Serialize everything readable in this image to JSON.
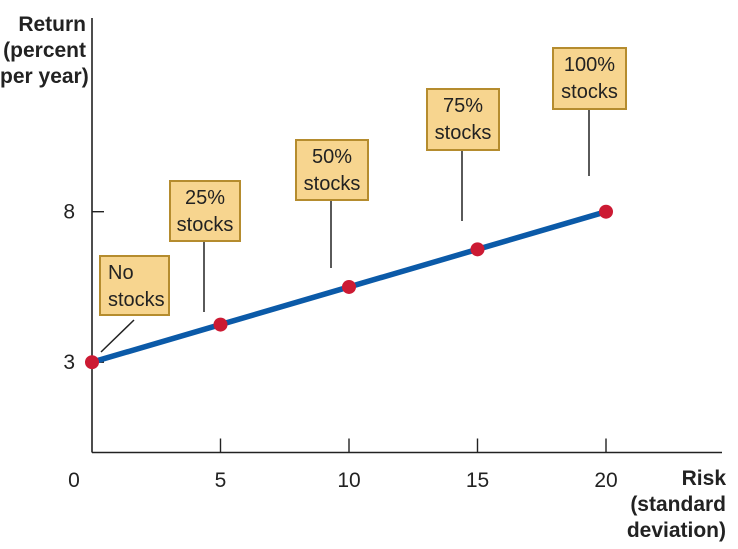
{
  "chart_data": {
    "type": "line",
    "ylabel_lines": [
      "Return",
      "(percent",
      "per year)"
    ],
    "xlabel_lines": [
      "Risk",
      "(standard",
      "deviation)"
    ],
    "x_ticks": [
      0,
      5,
      10,
      15,
      20
    ],
    "y_ticks": [
      3,
      8
    ],
    "xlim": [
      0,
      25
    ],
    "ylim": [
      0,
      11
    ],
    "grid": false,
    "series": [
      {
        "color": "#0b5aa8",
        "x": [
          0,
          5,
          10,
          15,
          20
        ],
        "y": [
          3,
          4.25,
          5.5,
          6.75,
          8
        ]
      }
    ],
    "annotations": [
      {
        "lines": [
          "No",
          "stocks"
        ],
        "x": 0,
        "y": 3
      },
      {
        "lines": [
          "25%",
          "stocks"
        ],
        "x": 5,
        "y": 4.25
      },
      {
        "lines": [
          "50%",
          "stocks"
        ],
        "x": 10,
        "y": 5.5
      },
      {
        "lines": [
          "75%",
          "stocks"
        ],
        "x": 15,
        "y": 6.75
      },
      {
        "lines": [
          "100%",
          "stocks"
        ],
        "x": 20,
        "y": 8
      }
    ],
    "colors": {
      "line": "#0b5aa8",
      "point": "#cc1a33",
      "box_fill": "#f7d58f",
      "box_border": "#b58c2e",
      "axis": "#222222"
    }
  }
}
